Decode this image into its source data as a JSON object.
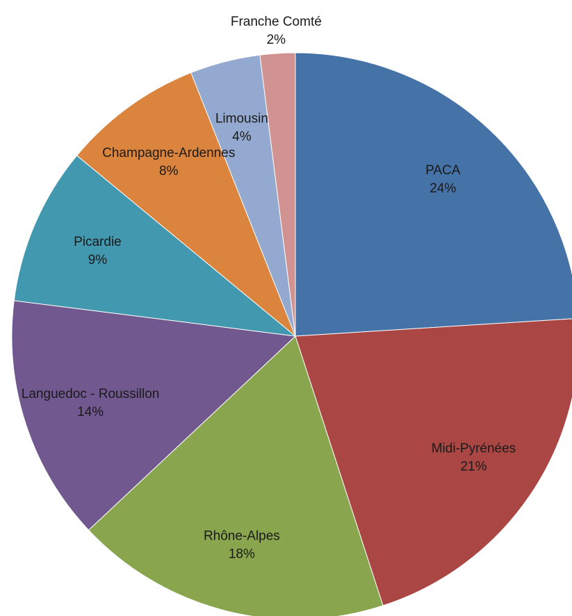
{
  "chart_data": {
    "type": "pie",
    "categories": [
      "PACA",
      "Midi-Pyrénées",
      "Rhône-Alpes",
      "Languedoc - Roussillon",
      "Picardie",
      "Champagne-Ardennes",
      "Limousin",
      "Franche Comté"
    ],
    "values": [
      24,
      21,
      18,
      14,
      9,
      8,
      4,
      2
    ],
    "value_labels": [
      "24%",
      "21%",
      "18%",
      "14%",
      "9%",
      "8%",
      "4%",
      "2%"
    ],
    "colors": [
      "#4572a7",
      "#aa4643",
      "#89a54e",
      "#71588f",
      "#4198af",
      "#db843d",
      "#93a9cf",
      "#d19392"
    ]
  }
}
